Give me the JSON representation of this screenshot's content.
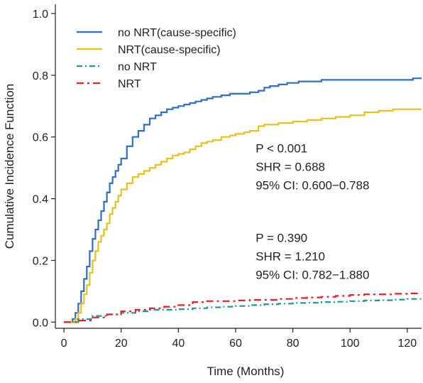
{
  "chart_data": {
    "type": "line",
    "title": "",
    "xlabel": "Time (Months)",
    "ylabel": "Cumulative Incidence Function",
    "xlim": [
      -3,
      125
    ],
    "ylim": [
      -0.02,
      1.03
    ],
    "xticks": [
      0,
      20,
      40,
      60,
      80,
      100,
      120
    ],
    "yticks": [
      0.0,
      0.2,
      0.4,
      0.6,
      0.8,
      1.0
    ],
    "xtick_labels": [
      "0",
      "20",
      "40",
      "60",
      "80",
      "100",
      "120"
    ],
    "ytick_labels": [
      "0.0",
      "0.2",
      "0.4",
      "0.6",
      "0.8",
      "1.0"
    ],
    "grid": false,
    "legend_position": "top-left",
    "series": [
      {
        "name": "no NRT(cause-specific)",
        "color": "#2e6fc7",
        "dash": "solid",
        "x": [
          0,
          3,
          4,
          5,
          6,
          7,
          8,
          9,
          10,
          11,
          12,
          13,
          14,
          15,
          16,
          17,
          18,
          19,
          20,
          22,
          24,
          26,
          28,
          30,
          32,
          34,
          36,
          38,
          40,
          42,
          44,
          46,
          48,
          50,
          52,
          55,
          58,
          62,
          65,
          68,
          70,
          72,
          75,
          78,
          82,
          86,
          90,
          95,
          100,
          110,
          122,
          125
        ],
        "y": [
          0.0,
          0.01,
          0.03,
          0.06,
          0.1,
          0.14,
          0.18,
          0.23,
          0.27,
          0.3,
          0.33,
          0.36,
          0.39,
          0.42,
          0.45,
          0.47,
          0.49,
          0.51,
          0.53,
          0.57,
          0.6,
          0.62,
          0.64,
          0.66,
          0.67,
          0.68,
          0.69,
          0.695,
          0.7,
          0.705,
          0.71,
          0.715,
          0.72,
          0.725,
          0.73,
          0.735,
          0.74,
          0.74,
          0.745,
          0.75,
          0.76,
          0.765,
          0.77,
          0.775,
          0.78,
          0.78,
          0.785,
          0.785,
          0.785,
          0.785,
          0.79,
          0.79
        ]
      },
      {
        "name": "NRT(cause-specific)",
        "color": "#e8c21a",
        "dash": "solid",
        "x": [
          0,
          4,
          5,
          6,
          7,
          8,
          9,
          10,
          11,
          12,
          13,
          14,
          15,
          16,
          17,
          18,
          19,
          20,
          22,
          24,
          26,
          28,
          30,
          32,
          34,
          36,
          38,
          40,
          42,
          44,
          46,
          48,
          50,
          52,
          55,
          58,
          60,
          63,
          65,
          68,
          70,
          75,
          80,
          85,
          90,
          95,
          100,
          105,
          110,
          115,
          120,
          125
        ],
        "y": [
          0.0,
          0.01,
          0.03,
          0.06,
          0.09,
          0.12,
          0.16,
          0.2,
          0.23,
          0.26,
          0.28,
          0.3,
          0.32,
          0.35,
          0.37,
          0.39,
          0.41,
          0.43,
          0.45,
          0.47,
          0.48,
          0.49,
          0.5,
          0.51,
          0.52,
          0.53,
          0.54,
          0.545,
          0.55,
          0.56,
          0.57,
          0.58,
          0.585,
          0.59,
          0.6,
          0.605,
          0.61,
          0.615,
          0.62,
          0.635,
          0.64,
          0.645,
          0.65,
          0.655,
          0.66,
          0.665,
          0.67,
          0.68,
          0.685,
          0.69,
          0.69,
          0.69
        ]
      },
      {
        "name": "no NRT",
        "color": "#1f9a8e",
        "dash": "8,4,2,4",
        "x": [
          0,
          5,
          10,
          15,
          20,
          25,
          30,
          35,
          40,
          45,
          50,
          55,
          60,
          65,
          70,
          75,
          80,
          85,
          90,
          95,
          100,
          105,
          110,
          115,
          120,
          125
        ],
        "y": [
          0.0,
          0.01,
          0.02,
          0.025,
          0.03,
          0.035,
          0.04,
          0.04,
          0.042,
          0.045,
          0.048,
          0.05,
          0.052,
          0.055,
          0.058,
          0.06,
          0.062,
          0.063,
          0.065,
          0.066,
          0.068,
          0.07,
          0.071,
          0.073,
          0.075,
          0.076
        ]
      },
      {
        "name": "NRT",
        "color": "#e8202a",
        "dash": "10,5,3,5",
        "x": [
          0,
          5,
          10,
          15,
          20,
          25,
          30,
          35,
          40,
          45,
          50,
          55,
          60,
          65,
          70,
          75,
          80,
          85,
          90,
          95,
          100,
          105,
          110,
          115,
          120,
          125
        ],
        "y": [
          0.0,
          0.005,
          0.015,
          0.025,
          0.035,
          0.04,
          0.045,
          0.05,
          0.055,
          0.065,
          0.068,
          0.068,
          0.07,
          0.072,
          0.072,
          0.075,
          0.078,
          0.08,
          0.082,
          0.085,
          0.088,
          0.09,
          0.09,
          0.092,
          0.093,
          0.093
        ]
      }
    ],
    "annotations": [
      {
        "lines": [
          "P < 0.001",
          "SHR = 0.688",
          "95% CI: 0.600−0.788"
        ],
        "x": 67,
        "y": 0.55
      },
      {
        "lines": [
          "P = 0.390",
          "SHR = 1.210",
          "95% CI: 0.782−1.880"
        ],
        "x": 67,
        "y": 0.26
      }
    ]
  }
}
